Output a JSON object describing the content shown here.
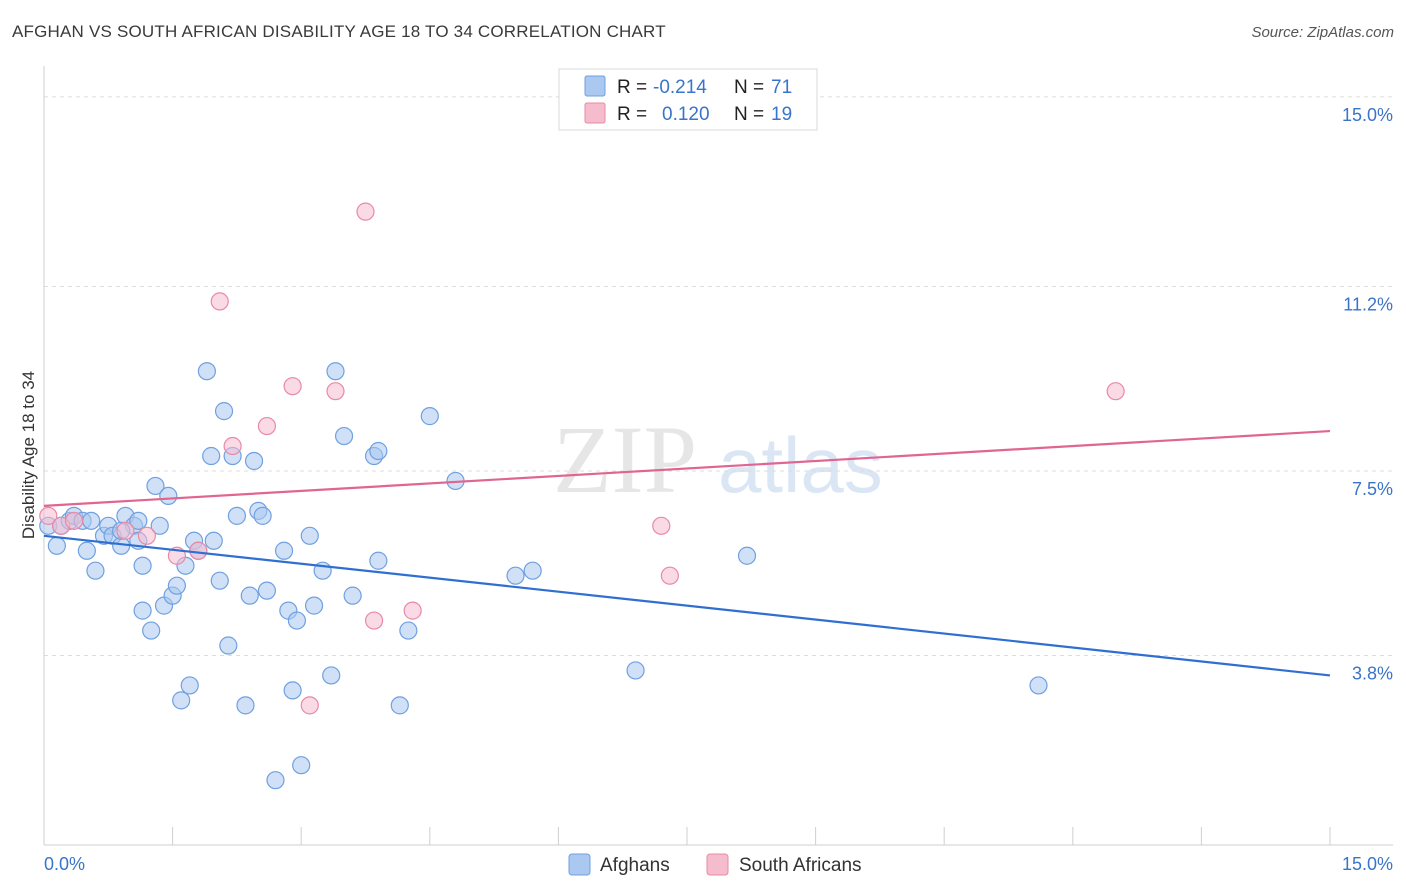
{
  "title": "AFGHAN VS SOUTH AFRICAN DISABILITY AGE 18 TO 34 CORRELATION CHART",
  "source": "Source: ZipAtlas.com",
  "watermark": {
    "zip": "ZIP",
    "atlas": "atlas"
  },
  "legend_box": {
    "rows": [
      {
        "r_label": "R = ",
        "r_value": "-0.214",
        "n_label": "N = ",
        "n_value": "71",
        "color": "#aac8f0"
      },
      {
        "r_label": "R = ",
        "r_value": "0.120",
        "n_label": "N = ",
        "n_value": "19",
        "color": "#f5bccd"
      }
    ]
  },
  "chart_data": {
    "type": "scatter",
    "title": "AFGHAN VS SOUTH AFRICAN DISABILITY AGE 18 TO 34 CORRELATION CHART",
    "xlabel": "",
    "ylabel": "Disability Age 18 to 34",
    "xlim": [
      0,
      15
    ],
    "ylim": [
      0,
      15.5
    ],
    "x_tick_labels": [
      "0.0%",
      "15.0%"
    ],
    "y_ticks": [
      3.8,
      7.5,
      11.2,
      15.0
    ],
    "y_tick_labels": [
      "3.8%",
      "7.5%",
      "11.2%",
      "15.0%"
    ],
    "grid": true,
    "legend_position": "bottom",
    "series": [
      {
        "name": "Afghans",
        "color": "#6fa0e0",
        "fill": "#aac8f0",
        "line_color": "#2f6fd1",
        "trend": {
          "x": [
            0,
            15
          ],
          "y": [
            6.2,
            3.4
          ]
        },
        "points": [
          [
            0.05,
            6.4
          ],
          [
            0.15,
            6.0
          ],
          [
            0.2,
            6.4
          ],
          [
            0.3,
            6.5
          ],
          [
            0.35,
            6.6
          ],
          [
            0.45,
            6.5
          ],
          [
            0.55,
            6.5
          ],
          [
            0.6,
            5.5
          ],
          [
            0.5,
            5.9
          ],
          [
            0.7,
            6.2
          ],
          [
            0.75,
            6.4
          ],
          [
            0.8,
            6.2
          ],
          [
            0.9,
            6.0
          ],
          [
            0.95,
            6.6
          ],
          [
            1.05,
            6.4
          ],
          [
            1.1,
            6.1
          ],
          [
            1.15,
            4.7
          ],
          [
            1.15,
            5.6
          ],
          [
            1.25,
            4.3
          ],
          [
            1.3,
            7.2
          ],
          [
            1.35,
            6.4
          ],
          [
            1.4,
            4.8
          ],
          [
            1.45,
            7.0
          ],
          [
            1.5,
            5.0
          ],
          [
            1.55,
            5.2
          ],
          [
            1.6,
            2.9
          ],
          [
            1.65,
            5.6
          ],
          [
            1.7,
            3.2
          ],
          [
            1.75,
            6.1
          ],
          [
            1.8,
            5.9
          ],
          [
            1.9,
            9.5
          ],
          [
            1.95,
            7.8
          ],
          [
            1.98,
            6.1
          ],
          [
            2.05,
            5.3
          ],
          [
            2.1,
            8.7
          ],
          [
            2.15,
            4.0
          ],
          [
            2.2,
            7.8
          ],
          [
            2.25,
            6.6
          ],
          [
            2.35,
            2.8
          ],
          [
            2.4,
            5.0
          ],
          [
            2.45,
            7.7
          ],
          [
            2.5,
            6.7
          ],
          [
            2.55,
            6.6
          ],
          [
            2.6,
            5.1
          ],
          [
            2.7,
            1.3
          ],
          [
            2.8,
            5.9
          ],
          [
            2.85,
            4.7
          ],
          [
            2.9,
            3.1
          ],
          [
            2.95,
            4.5
          ],
          [
            3.0,
            1.6
          ],
          [
            3.1,
            6.2
          ],
          [
            3.15,
            4.8
          ],
          [
            3.25,
            5.5
          ],
          [
            3.35,
            3.4
          ],
          [
            3.4,
            9.5
          ],
          [
            3.5,
            8.2
          ],
          [
            3.6,
            5.0
          ],
          [
            3.85,
            7.8
          ],
          [
            3.9,
            5.7
          ],
          [
            3.9,
            7.9
          ],
          [
            4.15,
            2.8
          ],
          [
            4.25,
            4.3
          ],
          [
            4.5,
            8.6
          ],
          [
            4.8,
            7.3
          ],
          [
            5.5,
            5.4
          ],
          [
            5.7,
            5.5
          ],
          [
            6.9,
            3.5
          ],
          [
            8.2,
            5.8
          ],
          [
            11.6,
            3.2
          ],
          [
            0.9,
            6.3
          ],
          [
            1.1,
            6.5
          ]
        ]
      },
      {
        "name": "South Africans",
        "color": "#e88aa6",
        "fill": "#f5bccd",
        "line_color": "#e06590",
        "trend": {
          "x": [
            0,
            15
          ],
          "y": [
            6.8,
            8.3
          ]
        },
        "points": [
          [
            0.05,
            6.6
          ],
          [
            0.2,
            6.4
          ],
          [
            0.35,
            6.5
          ],
          [
            0.95,
            6.3
          ],
          [
            1.2,
            6.2
          ],
          [
            1.55,
            5.8
          ],
          [
            1.8,
            5.9
          ],
          [
            2.05,
            10.9
          ],
          [
            2.2,
            8.0
          ],
          [
            2.6,
            8.4
          ],
          [
            2.9,
            9.2
          ],
          [
            3.1,
            2.8
          ],
          [
            3.4,
            9.1
          ],
          [
            3.75,
            12.7
          ],
          [
            3.85,
            4.5
          ],
          [
            4.3,
            4.7
          ],
          [
            7.2,
            6.4
          ],
          [
            7.3,
            5.4
          ],
          [
            12.5,
            9.1
          ]
        ]
      }
    ]
  },
  "bottom_legend": [
    "Afghans",
    "South Africans"
  ]
}
